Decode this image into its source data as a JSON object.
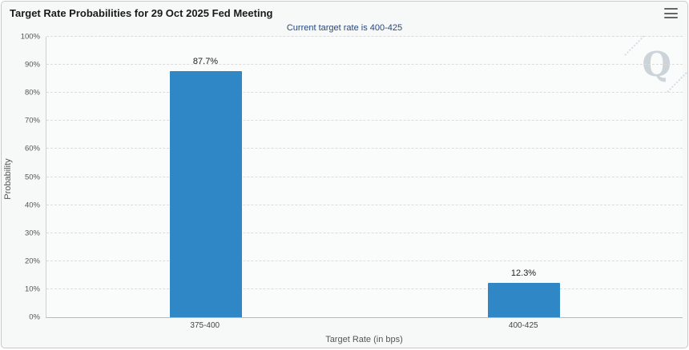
{
  "header": {
    "title": "Target Rate Probabilities for 29 Oct 2025 Fed Meeting"
  },
  "chart_data": {
    "type": "bar",
    "title": "Target Rate Probabilities for 29 Oct 2025 Fed Meeting",
    "subtitle": "Current target rate is 400-425",
    "categories": [
      "375-400",
      "400-425"
    ],
    "values": [
      87.7,
      12.3
    ],
    "value_labels": [
      "87.7%",
      "12.3%"
    ],
    "xlabel": "Target Rate (in bps)",
    "ylabel": "Probability",
    "ylim": [
      0,
      100
    ],
    "ytick_step": 10,
    "ytick_labels": [
      "0%",
      "10%",
      "20%",
      "30%",
      "40%",
      "50%",
      "60%",
      "70%",
      "80%",
      "90%",
      "100%"
    ],
    "grid": "dashed-horizontal",
    "legend": "none",
    "bar_color": "#2f87c5",
    "subtitle_color": "#26477d",
    "watermark": "Q",
    "menu_icon": "hamburger-menu-icon"
  }
}
